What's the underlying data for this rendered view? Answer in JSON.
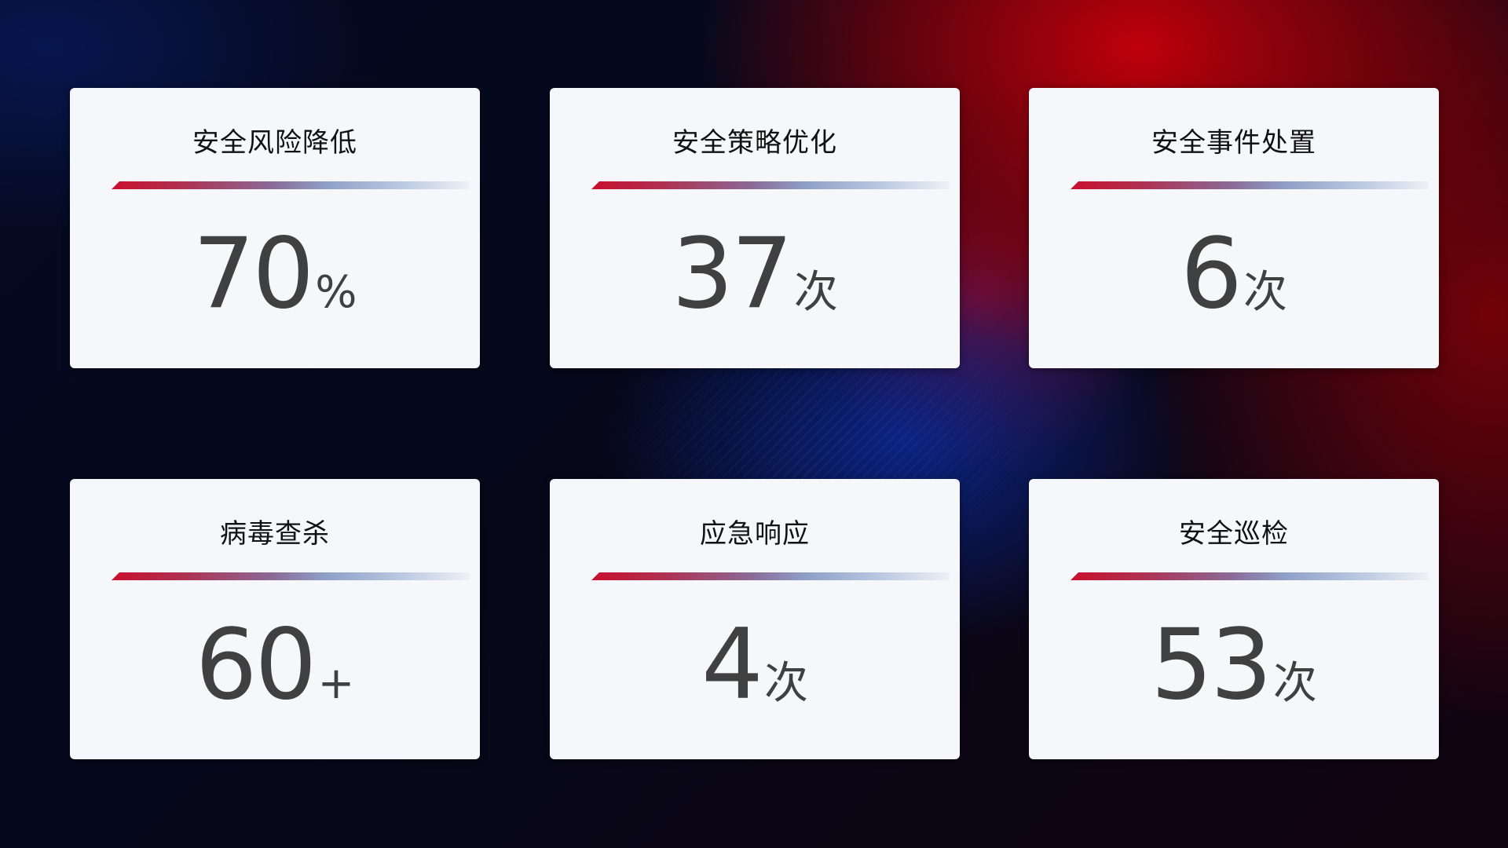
{
  "cards": [
    {
      "title": "安全风险降低",
      "value": "70",
      "unit": "%"
    },
    {
      "title": "安全策略优化",
      "value": "37",
      "unit": "次"
    },
    {
      "title": "安全事件处置",
      "value": "6",
      "unit": "次"
    },
    {
      "title": "病毒查杀",
      "value": "60",
      "unit": "+"
    },
    {
      "title": "应急响应",
      "value": "4",
      "unit": "次"
    },
    {
      "title": "安全巡检",
      "value": "53",
      "unit": "次"
    }
  ],
  "colors": {
    "accent_red": "#c8102e",
    "accent_blue": "#8fa0c8",
    "card_bg": "#f6f7fb",
    "value_text": "#404040"
  }
}
